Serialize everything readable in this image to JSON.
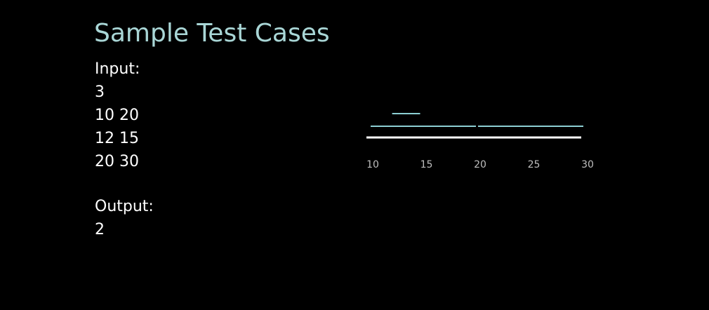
{
  "slide": {
    "title": "Sample Test Cases"
  },
  "input": {
    "label": "Input:",
    "lines": [
      "3",
      "10 20",
      "12 15",
      "20 30"
    ]
  },
  "output": {
    "label": "Output:",
    "value": "2"
  },
  "diagram": {
    "axis_ticks": [
      "10",
      "15",
      "20",
      "25",
      "30"
    ],
    "axis_range": [
      10,
      30
    ],
    "intervals": [
      {
        "start": 10,
        "end": 20
      },
      {
        "start": 12,
        "end": 15
      },
      {
        "start": 20,
        "end": 30
      }
    ],
    "colors": {
      "axis": "#ffffff",
      "interval": "#8ccfd3",
      "tick_label": "#bfbfbf"
    }
  }
}
